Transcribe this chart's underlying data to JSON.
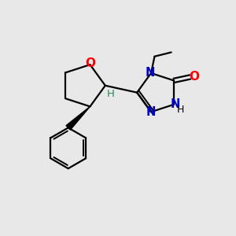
{
  "background_color": "#e8e8e8",
  "bond_color": "#000000",
  "N_color": "#0000cd",
  "O_color": "#ff0000",
  "H_color": "#2e8b57",
  "figsize": [
    3.0,
    3.0
  ],
  "dpi": 100,
  "xlim": [
    0,
    10
  ],
  "ylim": [
    0,
    10
  ]
}
